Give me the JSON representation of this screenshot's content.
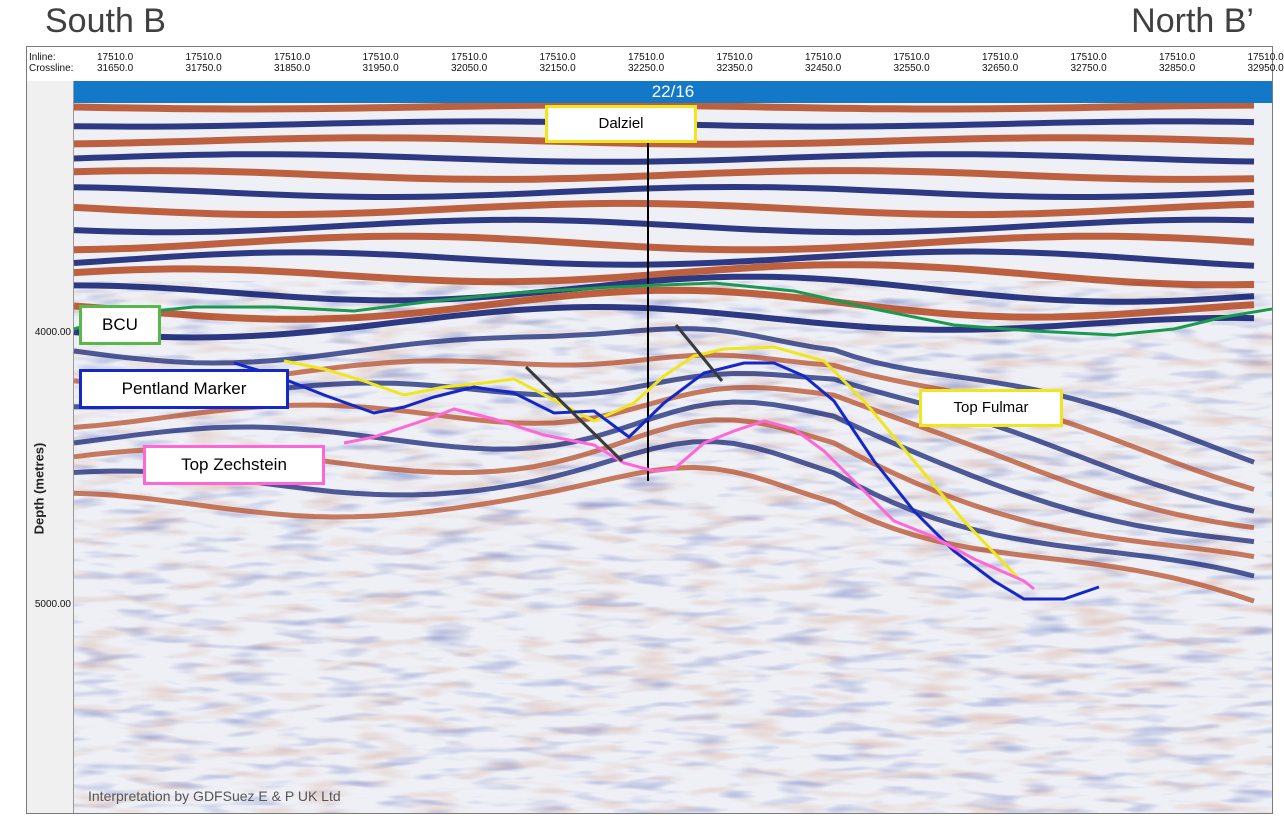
{
  "titles": {
    "left": "South B",
    "right": "North B’"
  },
  "axis": {
    "inline_label": "Inline:",
    "crossline_label": "Crossline:",
    "columns": [
      {
        "inline": "17510.0",
        "crossline": "31650.0"
      },
      {
        "inline": "17510.0",
        "crossline": "31750.0"
      },
      {
        "inline": "17510.0",
        "crossline": "31850.0"
      },
      {
        "inline": "17510.0",
        "crossline": "31950.0"
      },
      {
        "inline": "17510.0",
        "crossline": "32050.0"
      },
      {
        "inline": "17510.0",
        "crossline": "32150.0"
      },
      {
        "inline": "17510.0",
        "crossline": "32250.0"
      },
      {
        "inline": "17510.0",
        "crossline": "32350.0"
      },
      {
        "inline": "17510.0",
        "crossline": "32450.0"
      },
      {
        "inline": "17510.0",
        "crossline": "32550.0"
      },
      {
        "inline": "17510.0",
        "crossline": "32650.0"
      },
      {
        "inline": "17510.0",
        "crossline": "32750.0"
      },
      {
        "inline": "17510.0",
        "crossline": "32850.0"
      },
      {
        "inline": "17510.0",
        "crossline": "32950.0"
      }
    ],
    "depth_label": "Depth (metres)",
    "depth_ticks": [
      "4000.00",
      "5000.00"
    ]
  },
  "block_label": "22/16",
  "well_label": "Dalziel",
  "horizons": {
    "bcu": "BCU",
    "pentland": "Pentland Marker",
    "zechstein": "Top Zechstein",
    "fulmar": "Top Fulmar"
  },
  "colors": {
    "bcu": "#1a9a50",
    "pentland": "#1428c8",
    "zechstein": "#ff66d8",
    "fulmar": "#f0e61e",
    "fault": "#3a3a3a",
    "bar": "#1478c8",
    "peak": "#b4461e",
    "trough": "#0a1a6e"
  },
  "credit": "Interpretation  by GDFSuez  E & P UK Ltd"
}
